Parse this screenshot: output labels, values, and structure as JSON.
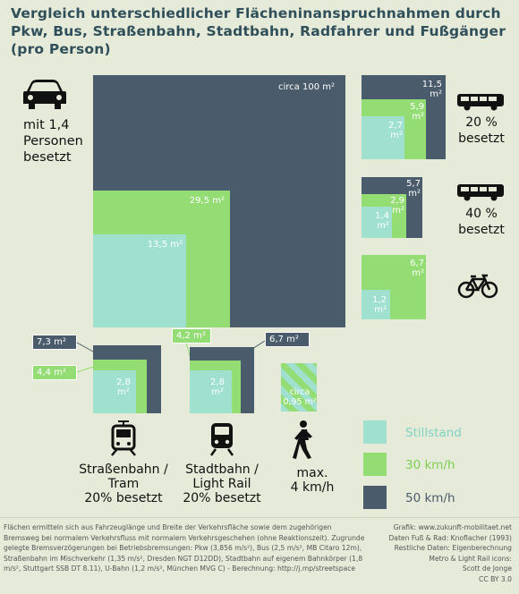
{
  "title": "Vergleich unterschiedlicher Flächeninanspruchnahmen durch Pkw, Bus, Straßenbahn, Stadtbahn, Radfahrer und Fußgänger (pro Person)",
  "colors": {
    "moving_50": "#4a5b6b",
    "moving_30": "#94dd74",
    "standstill": "#9fe0cf",
    "background": "#e6ead8"
  },
  "car": {
    "icon": "car-icon",
    "caption": "mit 1,4 Personen besetzt",
    "v50": "circa 100 m²",
    "v30": "29,5 m²",
    "v0": "13,5 m²"
  },
  "bus20": {
    "icon": "bus-icon",
    "caption": "20 % besetzt",
    "v50": "11,5 m²",
    "v30": "5,9 m²",
    "v0": "2,7 m²"
  },
  "bus40": {
    "icon": "bus-icon",
    "caption": "40 % besetzt",
    "v50": "5,7 m²",
    "v30": "2,9 m²",
    "v0": "1,4 m²"
  },
  "bike": {
    "icon": "bicycle-icon",
    "v30": "6,7 m²",
    "v0": "1,2 m²"
  },
  "tram": {
    "icon": "tram-icon",
    "caption_line1": "Straßenbahn /",
    "caption_line2": "Tram",
    "caption_line3": "20% besetzt",
    "v50": "7,3 m²",
    "v30": "4,4 m²",
    "v0": "2,8 m²"
  },
  "lightrail": {
    "icon": "light-rail-icon",
    "caption_line1": "Stadtbahn /",
    "caption_line2": "Light Rail",
    "caption_line3": "20% besetzt",
    "v50": "6,7 m²",
    "v30": "4,2 m²",
    "v0": "2,8 m²"
  },
  "pedestrian": {
    "icon": "pedestrian-icon",
    "caption_line1": "max.",
    "caption_line2": "4 km/h",
    "value": "circa 0,95 m²"
  },
  "legend": [
    {
      "label": "Stillstand",
      "color": "#9fe0cf",
      "text_color": "#7fd4c4"
    },
    {
      "label": "30 km/h",
      "color": "#94dd74",
      "text_color": "#7ccf52"
    },
    {
      "label": "50 km/h",
      "color": "#4a5b6b",
      "text_color": "#4a5b6b"
    }
  ],
  "footer_left": "Flächen ermitteln sich aus Fahrzeuglänge und Breite der Verkehrsfläche sowie dem zugehörigen Bremsweg bei normalem Verkehrsfluss mit normalem Verkehrsgeschehen (ohne Reaktionszeit). Zugrunde gelegte Bremsverzögerungen bei Betriebsbremsungen: Pkw (3,856 m/s²), Bus (2,5 m/s², MB Citaro 12m), Straßenbahn im Mischverkehr (1,35 m/s², Dresden NGT D12DD), Stadtbahn auf eigenem Bahnkörper (1,8 m/s², Stuttgart SSB DT 8.11), U-Bahn (1,2 m/s², München MVG C) - Berechnung: http://j.mp/streetspace",
  "footer_right": [
    "Grafik: www.zukunft-mobilitaet.net",
    "Daten Fuß & Rad: Knoflacher (1993)",
    "Restliche Daten: Eigenberechnung",
    "Metro & Light Rail icons:",
    "Scott de Jonge",
    "CC BY 3.0"
  ]
}
